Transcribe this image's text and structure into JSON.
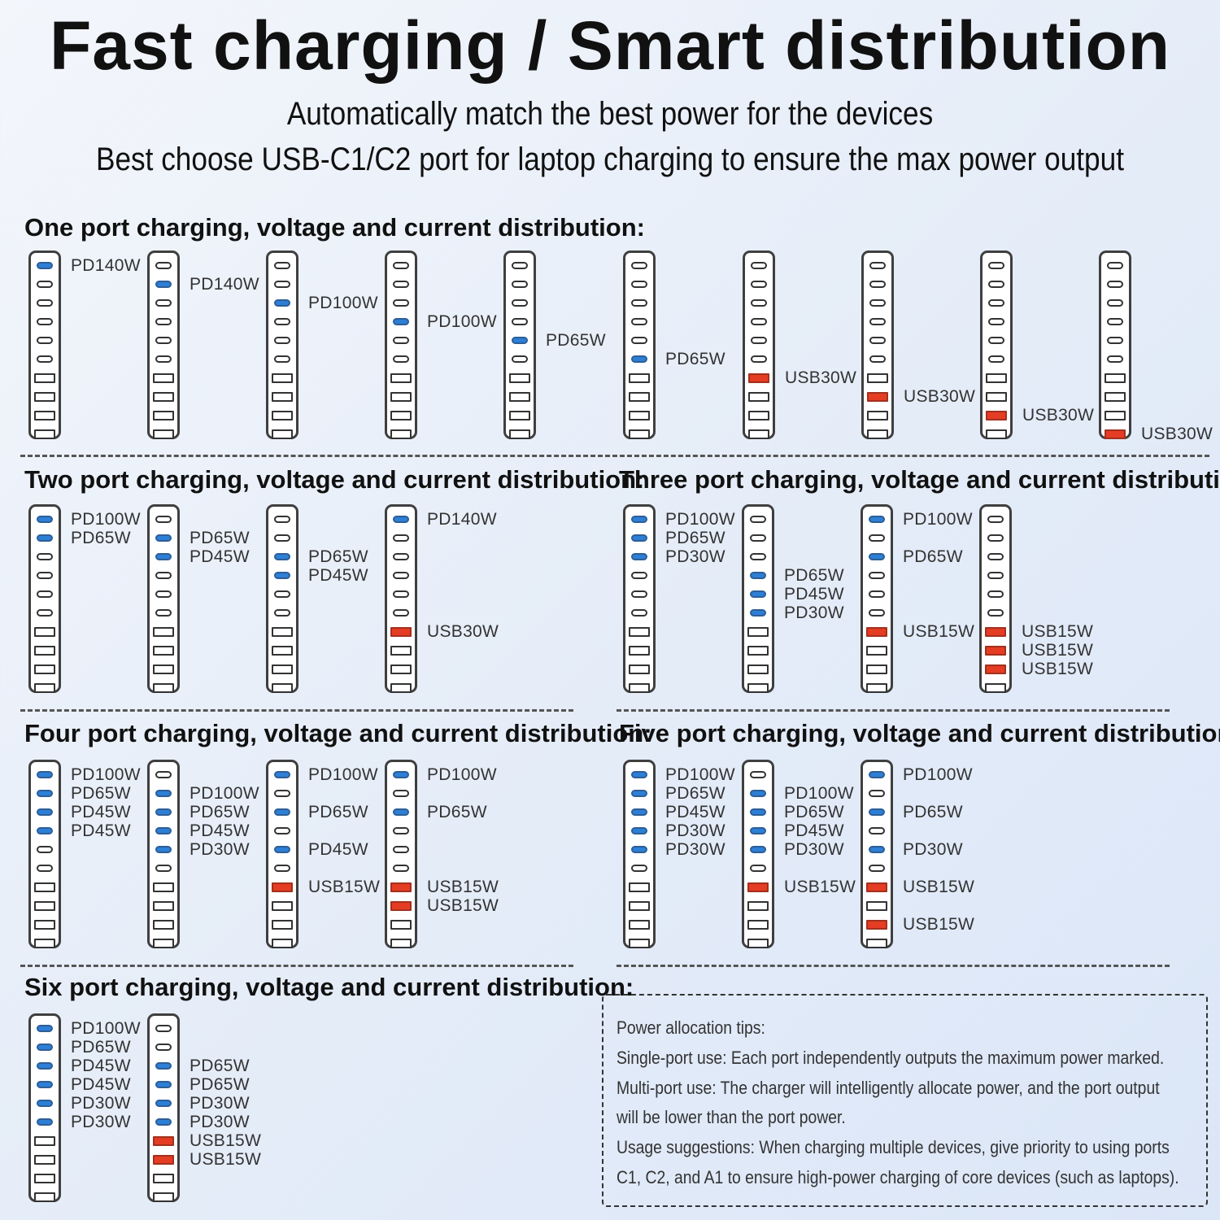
{
  "title": "Fast charging / Smart distribution",
  "subtitle1": "Automatically match the best power for the devices",
  "subtitle2": "Best choose USB-C1/C2 port for laptop charging to ensure the max power output",
  "colors": {
    "pd_active": "#2d7fd6",
    "usb_active": "#e53c24",
    "inactive": "#ffffff"
  },
  "sections": {
    "one": {
      "title": "One port charging, voltage and current distribution:",
      "diagrams": [
        {
          "ports": [
            {
              "i": 0,
              "type": "pd",
              "label": "PD140W"
            }
          ]
        },
        {
          "ports": [
            {
              "i": 1,
              "type": "pd",
              "label": "PD140W"
            }
          ]
        },
        {
          "ports": [
            {
              "i": 2,
              "type": "pd",
              "label": "PD100W"
            }
          ]
        },
        {
          "ports": [
            {
              "i": 3,
              "type": "pd",
              "label": "PD100W"
            }
          ]
        },
        {
          "ports": [
            {
              "i": 4,
              "type": "pd",
              "label": "PD65W"
            }
          ]
        },
        {
          "ports": [
            {
              "i": 5,
              "type": "pd",
              "label": "PD65W"
            }
          ]
        },
        {
          "ports": [
            {
              "i": 6,
              "type": "usb",
              "label": "USB30W"
            }
          ]
        },
        {
          "ports": [
            {
              "i": 7,
              "type": "usb",
              "label": "USB30W"
            }
          ]
        },
        {
          "ports": [
            {
              "i": 8,
              "type": "usb",
              "label": "USB30W"
            }
          ]
        },
        {
          "ports": [
            {
              "i": 9,
              "type": "usb",
              "label": "USB30W"
            }
          ]
        }
      ]
    },
    "two": {
      "title": "Two port charging, voltage and current distribution:",
      "diagrams": [
        {
          "ports": [
            {
              "i": 0,
              "type": "pd",
              "label": "PD100W"
            },
            {
              "i": 1,
              "type": "pd",
              "label": "PD65W"
            }
          ]
        },
        {
          "ports": [
            {
              "i": 1,
              "type": "pd",
              "label": "PD65W"
            },
            {
              "i": 2,
              "type": "pd",
              "label": "PD45W"
            }
          ]
        },
        {
          "ports": [
            {
              "i": 2,
              "type": "pd",
              "label": "PD65W"
            },
            {
              "i": 3,
              "type": "pd",
              "label": "PD45W"
            }
          ]
        },
        {
          "ports": [
            {
              "i": 0,
              "type": "pd",
              "label": "PD140W"
            },
            {
              "i": 6,
              "type": "usb",
              "label": "USB30W"
            }
          ]
        }
      ]
    },
    "three": {
      "title": "Three port charging, voltage and current distribution:",
      "diagrams": [
        {
          "ports": [
            {
              "i": 0,
              "type": "pd",
              "label": "PD100W"
            },
            {
              "i": 1,
              "type": "pd",
              "label": "PD65W"
            },
            {
              "i": 2,
              "type": "pd",
              "label": "PD30W"
            }
          ]
        },
        {
          "ports": [
            {
              "i": 3,
              "type": "pd",
              "label": "PD65W"
            },
            {
              "i": 4,
              "type": "pd",
              "label": "PD45W"
            },
            {
              "i": 5,
              "type": "pd",
              "label": "PD30W"
            }
          ]
        },
        {
          "ports": [
            {
              "i": 0,
              "type": "pd",
              "label": "PD100W"
            },
            {
              "i": 2,
              "type": "pd",
              "label": "PD65W"
            },
            {
              "i": 6,
              "type": "usb",
              "label": "USB15W"
            }
          ]
        },
        {
          "ports": [
            {
              "i": 6,
              "type": "usb",
              "label": "USB15W"
            },
            {
              "i": 7,
              "type": "usb",
              "label": "USB15W"
            },
            {
              "i": 8,
              "type": "usb",
              "label": "USB15W"
            }
          ]
        }
      ]
    },
    "four": {
      "title": "Four port charging, voltage and current distribution:",
      "diagrams": [
        {
          "ports": [
            {
              "i": 0,
              "type": "pd",
              "label": "PD100W"
            },
            {
              "i": 1,
              "type": "pd",
              "label": "PD65W"
            },
            {
              "i": 2,
              "type": "pd",
              "label": "PD45W"
            },
            {
              "i": 3,
              "type": "pd",
              "label": "PD45W"
            }
          ]
        },
        {
          "ports": [
            {
              "i": 1,
              "type": "pd",
              "label": "PD100W"
            },
            {
              "i": 2,
              "type": "pd",
              "label": "PD65W"
            },
            {
              "i": 3,
              "type": "pd",
              "label": "PD45W"
            },
            {
              "i": 4,
              "type": "pd",
              "label": "PD30W"
            }
          ]
        },
        {
          "ports": [
            {
              "i": 0,
              "type": "pd",
              "label": "PD100W"
            },
            {
              "i": 2,
              "type": "pd",
              "label": "PD65W"
            },
            {
              "i": 4,
              "type": "pd",
              "label": "PD45W"
            },
            {
              "i": 6,
              "type": "usb",
              "label": "USB15W"
            }
          ]
        },
        {
          "ports": [
            {
              "i": 0,
              "type": "pd",
              "label": "PD100W"
            },
            {
              "i": 2,
              "type": "pd",
              "label": "PD65W"
            },
            {
              "i": 6,
              "type": "usb",
              "label": "USB15W"
            },
            {
              "i": 7,
              "type": "usb",
              "label": "USB15W"
            }
          ]
        }
      ]
    },
    "five": {
      "title": "Five port charging, voltage and current distribution:",
      "diagrams": [
        {
          "ports": [
            {
              "i": 0,
              "type": "pd",
              "label": "PD100W"
            },
            {
              "i": 1,
              "type": "pd",
              "label": "PD65W"
            },
            {
              "i": 2,
              "type": "pd",
              "label": "PD45W"
            },
            {
              "i": 3,
              "type": "pd",
              "label": "PD30W"
            },
            {
              "i": 4,
              "type": "pd",
              "label": "PD30W"
            }
          ]
        },
        {
          "ports": [
            {
              "i": 1,
              "type": "pd",
              "label": "PD100W"
            },
            {
              "i": 2,
              "type": "pd",
              "label": "PD65W"
            },
            {
              "i": 3,
              "type": "pd",
              "label": "PD45W"
            },
            {
              "i": 4,
              "type": "pd",
              "label": "PD30W"
            },
            {
              "i": 6,
              "type": "usb",
              "label": "USB15W"
            }
          ]
        },
        {
          "ports": [
            {
              "i": 0,
              "type": "pd",
              "label": "PD100W"
            },
            {
              "i": 2,
              "type": "pd",
              "label": "PD65W"
            },
            {
              "i": 4,
              "type": "pd",
              "label": "PD30W"
            },
            {
              "i": 6,
              "type": "usb",
              "label": "USB15W"
            },
            {
              "i": 8,
              "type": "usb",
              "label": "USB15W"
            }
          ]
        }
      ]
    },
    "six": {
      "title": "Six port charging, voltage and current distribution:",
      "diagrams": [
        {
          "ports": [
            {
              "i": 0,
              "type": "pd",
              "label": "PD100W"
            },
            {
              "i": 1,
              "type": "pd",
              "label": "PD65W"
            },
            {
              "i": 2,
              "type": "pd",
              "label": "PD45W"
            },
            {
              "i": 3,
              "type": "pd",
              "label": "PD45W"
            },
            {
              "i": 4,
              "type": "pd",
              "label": "PD30W"
            },
            {
              "i": 5,
              "type": "pd",
              "label": "PD30W"
            }
          ]
        },
        {
          "ports": [
            {
              "i": 2,
              "type": "pd",
              "label": "PD65W"
            },
            {
              "i": 3,
              "type": "pd",
              "label": "PD65W"
            },
            {
              "i": 4,
              "type": "pd",
              "label": "PD30W"
            },
            {
              "i": 5,
              "type": "pd",
              "label": "PD30W"
            },
            {
              "i": 6,
              "type": "usb",
              "label": "USB15W"
            },
            {
              "i": 7,
              "type": "usb",
              "label": "USB15W"
            }
          ]
        }
      ]
    }
  },
  "tips": {
    "lines": [
      "Power allocation tips:",
      "Single-port use: Each port independently outputs the maximum power marked.",
      "Multi-port use: The charger will intelligently allocate power, and the port output",
      "will be lower than the port power.",
      "Usage suggestions: When charging multiple devices, give priority to using ports",
      "C1, C2, and A1 to ensure high-power charging of core devices (such as laptops)."
    ]
  }
}
